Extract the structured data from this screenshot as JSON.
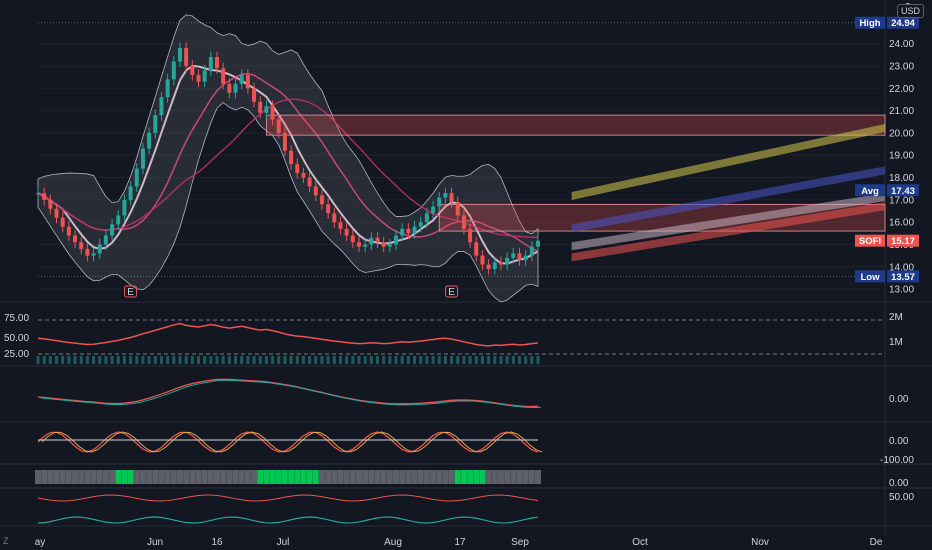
{
  "currency": "USD",
  "corner_label": "Z",
  "earnings_marker": "E",
  "price_pane": {
    "y_ticks": [
      "13.00",
      "14.00",
      "15.00",
      "16.00",
      "17.00",
      "18.00",
      "19.00",
      "20.00",
      "21.00",
      "22.00",
      "23.00",
      "24.00"
    ],
    "top_partial": "2",
    "labels": {
      "high": {
        "name": "High",
        "value": "24.94",
        "color": "#1e3a8a"
      },
      "avg": {
        "name": "Avg",
        "value": "17.43",
        "color": "#1e3a8a"
      },
      "last": {
        "name": "SOFI",
        "value": "15.17",
        "color": "#ef5350"
      },
      "low": {
        "name": "Low",
        "value": "13.57",
        "color": "#1e3a8a"
      }
    }
  },
  "rsi_volume_pane": {
    "left_ticks": [
      "75.00",
      "50.00",
      "25.00"
    ],
    "right_ticks": [
      "2M",
      "1M"
    ]
  },
  "osc_panes": [
    {
      "ticks": [
        "0.00"
      ]
    },
    {
      "ticks": [
        "0.00",
        "-100.00"
      ]
    },
    {
      "ticks": [
        "0.00"
      ]
    },
    {
      "ticks": [
        "50.00"
      ]
    }
  ],
  "x_axis": {
    "labels": [
      "ay",
      "Jun",
      "16",
      "Jul",
      "Aug",
      "17",
      "Sep",
      "Oct",
      "Nov",
      "De"
    ]
  },
  "chart_data": {
    "type": "candlestick",
    "ticker": "SOFI",
    "high": 24.94,
    "avg": 17.43,
    "last": 15.17,
    "low": 13.57,
    "ylim": [
      12.6,
      25.6
    ],
    "closes": [
      17.3,
      17.0,
      16.6,
      16.2,
      15.8,
      15.4,
      15.1,
      14.8,
      14.5,
      14.6,
      15.0,
      15.4,
      15.9,
      16.3,
      17.0,
      17.6,
      18.4,
      19.3,
      20.0,
      20.8,
      21.6,
      22.4,
      23.2,
      23.8,
      23.0,
      22.6,
      22.3,
      22.8,
      23.4,
      22.9,
      22.2,
      21.8,
      22.2,
      22.6,
      22.0,
      21.4,
      20.9,
      21.2,
      20.6,
      20.0,
      19.2,
      18.6,
      18.2,
      18.0,
      17.6,
      17.2,
      16.8,
      16.4,
      16.0,
      15.7,
      15.4,
      15.1,
      14.9,
      15.0,
      15.3,
      15.1,
      14.9,
      15.0,
      15.4,
      15.7,
      15.5,
      15.8,
      16.0,
      16.4,
      16.7,
      17.1,
      17.3,
      16.9,
      16.3,
      15.7,
      15.1,
      14.5,
      14.1,
      13.9,
      14.2,
      14.1,
      14.4,
      14.6,
      14.3,
      14.5,
      14.9,
      15.17
    ],
    "horizontal_zones": [
      [
        19.9,
        20.8
      ],
      [
        15.6,
        16.8
      ]
    ],
    "channels": [
      {
        "color": "#d6c84a",
        "from": [
          0.63,
          17.35
        ],
        "to": [
          1.0,
          20.4
        ]
      },
      {
        "color": "#4a56c8",
        "from": [
          0.63,
          15.9
        ],
        "to": [
          1.0,
          18.5
        ]
      },
      {
        "color": "#c8b0c0",
        "from": [
          0.63,
          15.1
        ],
        "to": [
          1.0,
          17.3
        ]
      },
      {
        "color": "#ef5350",
        "from": [
          0.63,
          14.6
        ],
        "to": [
          1.0,
          16.9
        ]
      }
    ]
  }
}
